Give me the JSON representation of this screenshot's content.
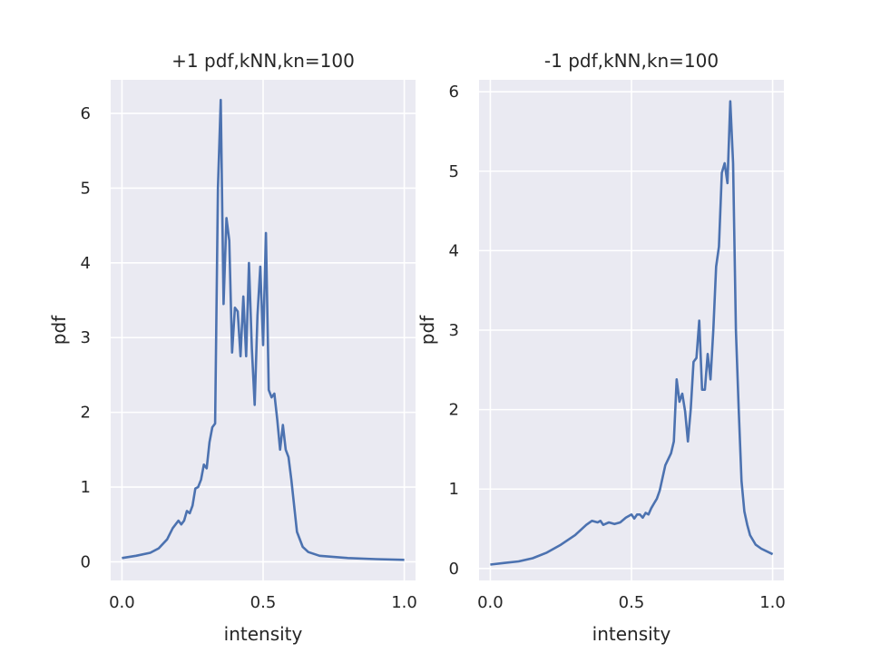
{
  "colors": {
    "background": "#eaeaf2",
    "grid": "#ffffff",
    "line": "#4c72b0",
    "text": "#262626"
  },
  "chart_data": [
    {
      "type": "line",
      "title": "+1 pdf,kNN,kn=100",
      "xlabel": "intensity",
      "ylabel": "pdf",
      "xlim": [
        -0.04,
        1.04
      ],
      "ylim": [
        -0.25,
        6.45
      ],
      "xticks": [
        0.0,
        0.5,
        1.0
      ],
      "xtick_labels": [
        "0.0",
        "0.5",
        "1.0"
      ],
      "yticks": [
        0,
        1,
        2,
        3,
        4,
        5,
        6
      ],
      "ytick_labels": [
        "0",
        "1",
        "2",
        "3",
        "4",
        "5",
        "6"
      ],
      "grid": true,
      "series": [
        {
          "x": [
            0.0,
            0.05,
            0.1,
            0.13,
            0.16,
            0.18,
            0.2,
            0.21,
            0.22,
            0.23,
            0.24,
            0.25,
            0.26,
            0.27,
            0.28,
            0.29,
            0.3,
            0.31,
            0.32,
            0.33,
            0.34,
            0.35,
            0.36,
            0.37,
            0.38,
            0.39,
            0.4,
            0.41,
            0.42,
            0.43,
            0.44,
            0.45,
            0.46,
            0.47,
            0.48,
            0.49,
            0.5,
            0.51,
            0.52,
            0.53,
            0.54,
            0.55,
            0.56,
            0.57,
            0.58,
            0.59,
            0.6,
            0.62,
            0.64,
            0.66,
            0.7,
            0.8,
            0.9,
            1.0
          ],
          "y": [
            0.05,
            0.08,
            0.12,
            0.18,
            0.3,
            0.45,
            0.55,
            0.5,
            0.55,
            0.68,
            0.65,
            0.75,
            0.98,
            1.0,
            1.1,
            1.3,
            1.25,
            1.6,
            1.8,
            1.85,
            5.0,
            6.18,
            3.45,
            4.6,
            4.3,
            2.8,
            3.4,
            3.35,
            2.75,
            3.55,
            2.75,
            4.0,
            2.85,
            2.1,
            3.3,
            3.95,
            2.9,
            4.4,
            2.3,
            2.2,
            2.25,
            1.9,
            1.5,
            1.83,
            1.5,
            1.4,
            1.1,
            0.4,
            0.2,
            0.13,
            0.08,
            0.05,
            0.035,
            0.025
          ]
        }
      ]
    },
    {
      "type": "line",
      "title": "-1 pdf,kNN,kn=100",
      "xlabel": "intensity",
      "ylabel": "pdf",
      "xlim": [
        -0.04,
        1.04
      ],
      "ylim": [
        -0.15,
        6.15
      ],
      "xticks": [
        0.0,
        0.5,
        1.0
      ],
      "xtick_labels": [
        "0.0",
        "0.5",
        "1.0"
      ],
      "yticks": [
        0,
        1,
        2,
        3,
        4,
        5,
        6
      ],
      "ytick_labels": [
        "0",
        "1",
        "2",
        "3",
        "4",
        "5",
        "6"
      ],
      "grid": true,
      "series": [
        {
          "x": [
            0.0,
            0.05,
            0.1,
            0.15,
            0.2,
            0.25,
            0.3,
            0.34,
            0.36,
            0.38,
            0.39,
            0.4,
            0.42,
            0.44,
            0.46,
            0.48,
            0.5,
            0.51,
            0.52,
            0.53,
            0.54,
            0.55,
            0.56,
            0.57,
            0.58,
            0.59,
            0.6,
            0.62,
            0.64,
            0.65,
            0.66,
            0.67,
            0.68,
            0.69,
            0.7,
            0.71,
            0.72,
            0.73,
            0.74,
            0.75,
            0.76,
            0.77,
            0.78,
            0.79,
            0.8,
            0.81,
            0.82,
            0.83,
            0.84,
            0.85,
            0.86,
            0.87,
            0.88,
            0.89,
            0.9,
            0.91,
            0.92,
            0.94,
            0.96,
            1.0
          ],
          "y": [
            0.05,
            0.07,
            0.09,
            0.13,
            0.2,
            0.3,
            0.42,
            0.55,
            0.6,
            0.58,
            0.6,
            0.55,
            0.58,
            0.56,
            0.58,
            0.64,
            0.68,
            0.63,
            0.68,
            0.68,
            0.64,
            0.7,
            0.68,
            0.76,
            0.82,
            0.88,
            0.98,
            1.3,
            1.45,
            1.6,
            2.38,
            2.1,
            2.2,
            1.98,
            1.6,
            2.0,
            2.6,
            2.65,
            3.12,
            2.25,
            2.25,
            2.7,
            2.38,
            3.0,
            3.8,
            4.05,
            4.98,
            5.1,
            4.85,
            5.88,
            5.1,
            3.0,
            2.0,
            1.1,
            0.72,
            0.55,
            0.42,
            0.3,
            0.25,
            0.18
          ]
        }
      ]
    }
  ]
}
